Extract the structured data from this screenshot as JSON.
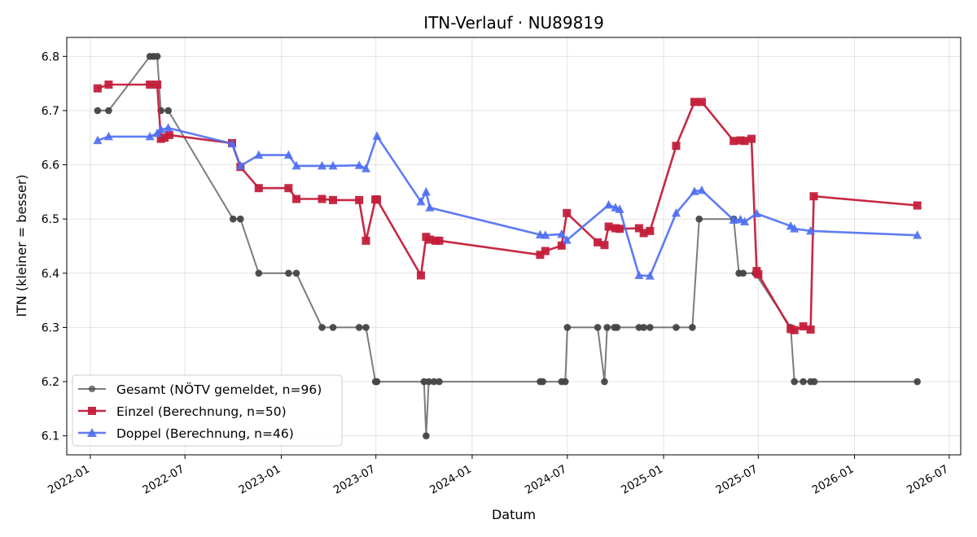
{
  "chart_data": {
    "type": "line",
    "title": "ITN-Verlauf · NU89819",
    "xlabel": "Datum",
    "ylabel": "ITN  (kleiner = besser)",
    "xlim": [
      "2021-11-17",
      "2026-07-23"
    ],
    "ylim": [
      6.065,
      6.835
    ],
    "x_ticks": [
      "2022-01-01",
      "2022-07-01",
      "2023-01-01",
      "2023-07-01",
      "2024-01-01",
      "2024-07-01",
      "2025-01-01",
      "2025-07-01",
      "2026-01-01",
      "2026-07-01"
    ],
    "x_tick_labels": [
      "2022-01",
      "2022-07",
      "2023-01",
      "2023-07",
      "2024-01",
      "2024-07",
      "2025-01",
      "2025-07",
      "2026-01",
      "2026-07"
    ],
    "y_ticks": [
      6.1,
      6.2,
      6.3,
      6.4,
      6.5,
      6.6,
      6.7,
      6.8
    ],
    "y_tick_labels": [
      "6.1",
      "6.2",
      "6.3",
      "6.4",
      "6.5",
      "6.6",
      "6.7",
      "6.8"
    ],
    "grid": true,
    "legend_position": "lower-left",
    "series": [
      {
        "name": "Gesamt (NÖTV gemeldet, n=96)",
        "color": "#444444",
        "marker": "circle",
        "points": [
          [
            "2022-01-15",
            6.7
          ],
          [
            "2022-02-05",
            6.7
          ],
          [
            "2022-04-25",
            6.8
          ],
          [
            "2022-05-02",
            6.8
          ],
          [
            "2022-05-09",
            6.8
          ],
          [
            "2022-05-16",
            6.7
          ],
          [
            "2022-05-30",
            6.7
          ],
          [
            "2022-10-01",
            6.5
          ],
          [
            "2022-10-15",
            6.5
          ],
          [
            "2022-11-19",
            6.4
          ],
          [
            "2023-01-15",
            6.4
          ],
          [
            "2023-01-30",
            6.4
          ],
          [
            "2023-03-20",
            6.3
          ],
          [
            "2023-04-10",
            6.3
          ],
          [
            "2023-05-30",
            6.3
          ],
          [
            "2023-06-12",
            6.3
          ],
          [
            "2023-06-30",
            6.2
          ],
          [
            "2023-07-03",
            6.2
          ],
          [
            "2023-10-01",
            6.2
          ],
          [
            "2023-10-05",
            6.1
          ],
          [
            "2023-10-10",
            6.2
          ],
          [
            "2023-10-20",
            6.2
          ],
          [
            "2023-10-30",
            6.2
          ],
          [
            "2024-05-10",
            6.2
          ],
          [
            "2024-05-15",
            6.2
          ],
          [
            "2024-06-20",
            6.2
          ],
          [
            "2024-06-27",
            6.2
          ],
          [
            "2024-07-01",
            6.3
          ],
          [
            "2024-08-28",
            6.3
          ],
          [
            "2024-09-10",
            6.2
          ],
          [
            "2024-09-15",
            6.3
          ],
          [
            "2024-09-29",
            6.3
          ],
          [
            "2024-10-04",
            6.3
          ],
          [
            "2024-11-15",
            6.3
          ],
          [
            "2024-11-24",
            6.3
          ],
          [
            "2024-12-06",
            6.3
          ],
          [
            "2025-01-25",
            6.3
          ],
          [
            "2025-02-25",
            6.3
          ],
          [
            "2025-03-10",
            6.5
          ],
          [
            "2025-05-15",
            6.5
          ],
          [
            "2025-05-25",
            6.4
          ],
          [
            "2025-06-02",
            6.4
          ],
          [
            "2025-06-25",
            6.4
          ],
          [
            "2025-09-01",
            6.3
          ],
          [
            "2025-09-08",
            6.2
          ],
          [
            "2025-09-25",
            6.2
          ],
          [
            "2025-10-09",
            6.2
          ],
          [
            "2025-10-16",
            6.2
          ],
          [
            "2026-05-01",
            6.2
          ]
        ]
      },
      {
        "name": "Einzel (Berechnung, n=50)",
        "color": "#c41e3a",
        "marker": "square",
        "points": [
          [
            "2022-01-15",
            6.741
          ],
          [
            "2022-02-05",
            6.748
          ],
          [
            "2022-04-25",
            6.748
          ],
          [
            "2022-05-09",
            6.748
          ],
          [
            "2022-05-16",
            6.648
          ],
          [
            "2022-05-23",
            6.65
          ],
          [
            "2022-06-01",
            6.655
          ],
          [
            "2022-09-29",
            6.64
          ],
          [
            "2022-10-15",
            6.596
          ],
          [
            "2022-11-19",
            6.557
          ],
          [
            "2023-01-15",
            6.557
          ],
          [
            "2023-01-30",
            6.537
          ],
          [
            "2023-03-20",
            6.537
          ],
          [
            "2023-04-10",
            6.535
          ],
          [
            "2023-05-30",
            6.535
          ],
          [
            "2023-06-12",
            6.46
          ],
          [
            "2023-06-30",
            6.536
          ],
          [
            "2023-07-03",
            6.536
          ],
          [
            "2023-09-25",
            6.396
          ],
          [
            "2023-10-05",
            6.467
          ],
          [
            "2023-10-12",
            6.462
          ],
          [
            "2023-10-23",
            6.46
          ],
          [
            "2023-10-30",
            6.46
          ],
          [
            "2024-05-10",
            6.434
          ],
          [
            "2024-05-20",
            6.441
          ],
          [
            "2024-06-20",
            6.451
          ],
          [
            "2024-06-30",
            6.511
          ],
          [
            "2024-08-28",
            6.457
          ],
          [
            "2024-09-10",
            6.452
          ],
          [
            "2024-09-18",
            6.486
          ],
          [
            "2024-10-01",
            6.483
          ],
          [
            "2024-10-09",
            6.482
          ],
          [
            "2024-11-15",
            6.483
          ],
          [
            "2024-11-24",
            6.474
          ],
          [
            "2024-12-06",
            6.478
          ],
          [
            "2025-01-25",
            6.635
          ],
          [
            "2025-03-01",
            6.716
          ],
          [
            "2025-03-15",
            6.716
          ],
          [
            "2025-05-15",
            6.644
          ],
          [
            "2025-05-28",
            6.645
          ],
          [
            "2025-06-05",
            6.644
          ],
          [
            "2025-06-18",
            6.648
          ],
          [
            "2025-06-28",
            6.404
          ],
          [
            "2025-07-01",
            6.398
          ],
          [
            "2025-09-01",
            6.297
          ],
          [
            "2025-09-08",
            6.295
          ],
          [
            "2025-09-25",
            6.302
          ],
          [
            "2025-10-09",
            6.296
          ],
          [
            "2025-10-15",
            6.542
          ],
          [
            "2026-05-01",
            6.525
          ]
        ]
      },
      {
        "name": "Doppel (Berechnung, n=46)",
        "color": "#4e6ef2",
        "marker": "triangle",
        "points": [
          [
            "2022-01-15",
            6.645
          ],
          [
            "2022-02-05",
            6.652
          ],
          [
            "2022-04-25",
            6.652
          ],
          [
            "2022-05-09",
            6.658
          ],
          [
            "2022-05-16",
            6.665
          ],
          [
            "2022-05-30",
            6.668
          ],
          [
            "2022-09-29",
            6.639
          ],
          [
            "2022-10-15",
            6.598
          ],
          [
            "2022-11-19",
            6.618
          ],
          [
            "2023-01-15",
            6.618
          ],
          [
            "2023-01-30",
            6.598
          ],
          [
            "2023-03-20",
            6.598
          ],
          [
            "2023-04-10",
            6.598
          ],
          [
            "2023-05-30",
            6.599
          ],
          [
            "2023-06-12",
            6.593
          ],
          [
            "2023-07-03",
            6.653
          ],
          [
            "2023-09-25",
            6.532
          ],
          [
            "2023-10-05",
            6.55
          ],
          [
            "2023-10-12",
            6.521
          ],
          [
            "2024-05-10",
            6.471
          ],
          [
            "2024-05-20",
            6.47
          ],
          [
            "2024-06-20",
            6.472
          ],
          [
            "2024-06-30",
            6.461
          ],
          [
            "2024-09-18",
            6.526
          ],
          [
            "2024-10-01",
            6.521
          ],
          [
            "2024-10-09",
            6.518
          ],
          [
            "2024-11-15",
            6.396
          ],
          [
            "2024-12-06",
            6.395
          ],
          [
            "2025-01-25",
            6.511
          ],
          [
            "2025-03-01",
            6.551
          ],
          [
            "2025-03-15",
            6.553
          ],
          [
            "2025-05-15",
            6.498
          ],
          [
            "2025-05-28",
            6.499
          ],
          [
            "2025-06-05",
            6.495
          ],
          [
            "2025-06-28",
            6.51
          ],
          [
            "2025-09-01",
            6.487
          ],
          [
            "2025-09-08",
            6.482
          ],
          [
            "2025-10-09",
            6.478
          ],
          [
            "2026-05-01",
            6.47
          ]
        ]
      }
    ]
  }
}
